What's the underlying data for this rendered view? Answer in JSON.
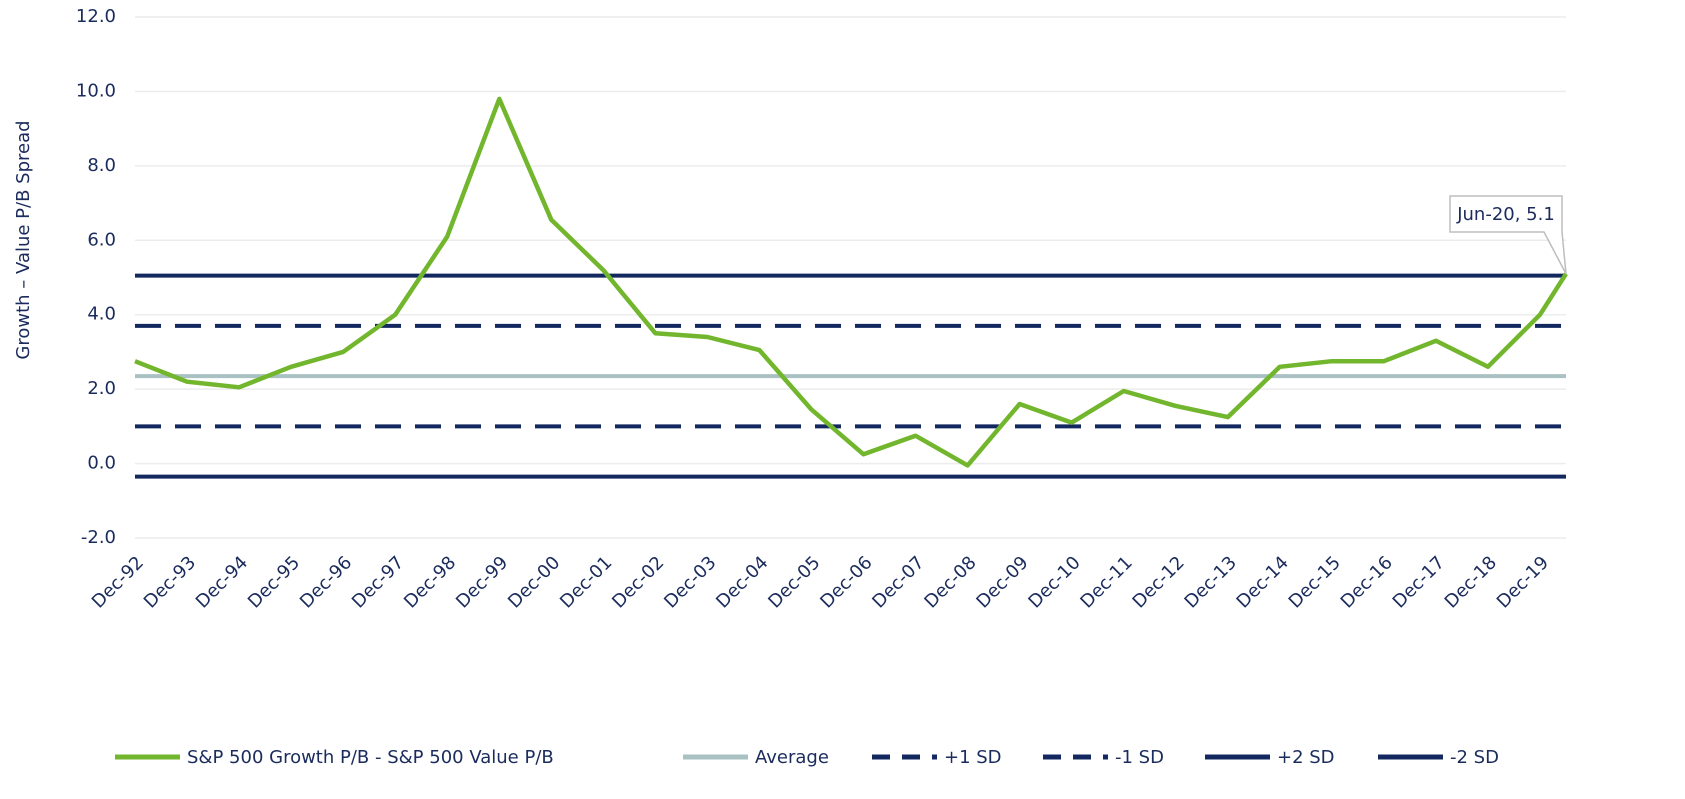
{
  "chart_data": {
    "type": "line",
    "y_label": "Growth – Value P/B Spread",
    "x": [
      1992,
      1993,
      1994,
      1995,
      1996,
      1997,
      1998,
      1999,
      2000,
      2001,
      2002,
      2003,
      2004,
      2005,
      2006,
      2007,
      2008,
      2009,
      2010,
      2011,
      2012,
      2013,
      2014,
      2015,
      2016,
      2017,
      2018,
      2019,
      2019.5
    ],
    "xlim": [
      1992,
      2019.5
    ],
    "xticks": [
      {
        "value": 1992,
        "label": "Dec-92"
      },
      {
        "value": 1993,
        "label": "Dec-93"
      },
      {
        "value": 1994,
        "label": "Dec-94"
      },
      {
        "value": 1995,
        "label": "Dec-95"
      },
      {
        "value": 1996,
        "label": "Dec-96"
      },
      {
        "value": 1997,
        "label": "Dec-97"
      },
      {
        "value": 1998,
        "label": "Dec-98"
      },
      {
        "value": 1999,
        "label": "Dec-99"
      },
      {
        "value": 2000,
        "label": "Dec-00"
      },
      {
        "value": 2001,
        "label": "Dec-01"
      },
      {
        "value": 2002,
        "label": "Dec-02"
      },
      {
        "value": 2003,
        "label": "Dec-03"
      },
      {
        "value": 2004,
        "label": "Dec-04"
      },
      {
        "value": 2005,
        "label": "Dec-05"
      },
      {
        "value": 2006,
        "label": "Dec-06"
      },
      {
        "value": 2007,
        "label": "Dec-07"
      },
      {
        "value": 2008,
        "label": "Dec-08"
      },
      {
        "value": 2009,
        "label": "Dec-09"
      },
      {
        "value": 2010,
        "label": "Dec-10"
      },
      {
        "value": 2011,
        "label": "Dec-11"
      },
      {
        "value": 2012,
        "label": "Dec-12"
      },
      {
        "value": 2013,
        "label": "Dec-13"
      },
      {
        "value": 2014,
        "label": "Dec-14"
      },
      {
        "value": 2015,
        "label": "Dec-15"
      },
      {
        "value": 2016,
        "label": "Dec-16"
      },
      {
        "value": 2017,
        "label": "Dec-17"
      },
      {
        "value": 2018,
        "label": "Dec-18"
      },
      {
        "value": 2019,
        "label": "Dec-19"
      }
    ],
    "ylim": [
      -2,
      12
    ],
    "yticks": [
      {
        "value": -2,
        "label": "-2.0"
      },
      {
        "value": 0,
        "label": "0.0"
      },
      {
        "value": 2,
        "label": "2.0"
      },
      {
        "value": 4,
        "label": "4.0"
      },
      {
        "value": 6,
        "label": "6.0"
      },
      {
        "value": 8,
        "label": "8.0"
      },
      {
        "value": 10,
        "label": "10.0"
      },
      {
        "value": 12,
        "label": "12.0"
      }
    ],
    "grid": true,
    "series": [
      {
        "name": "S&P 500 Growth P/B - S&P 500 Value P/B",
        "color": "#72b62e",
        "values": [
          2.75,
          2.2,
          2.05,
          2.6,
          3.0,
          4.0,
          6.1,
          9.8,
          6.55,
          5.2,
          3.5,
          3.4,
          3.05,
          1.45,
          0.25,
          0.75,
          -0.05,
          1.6,
          1.1,
          1.95,
          1.55,
          1.25,
          2.6,
          2.75,
          2.75,
          3.3,
          2.6,
          4.0,
          5.1
        ]
      }
    ],
    "lines": [
      {
        "name": "Average",
        "value": 2.35,
        "color": "#a9c1c2",
        "dashed": false
      },
      {
        "name": "+1 SD",
        "value": 3.7,
        "color": "#142860",
        "dashed": true
      },
      {
        "name": "-1 SD",
        "value": 1.0,
        "color": "#142860",
        "dashed": true
      },
      {
        "name": "+2 SD",
        "value": 5.05,
        "color": "#142860",
        "dashed": false
      },
      {
        "name": "-2 SD",
        "value": -0.35,
        "color": "#142860",
        "dashed": false
      }
    ],
    "annotation": {
      "text": "Jun-20, 5.1"
    },
    "legend": "bottom"
  }
}
